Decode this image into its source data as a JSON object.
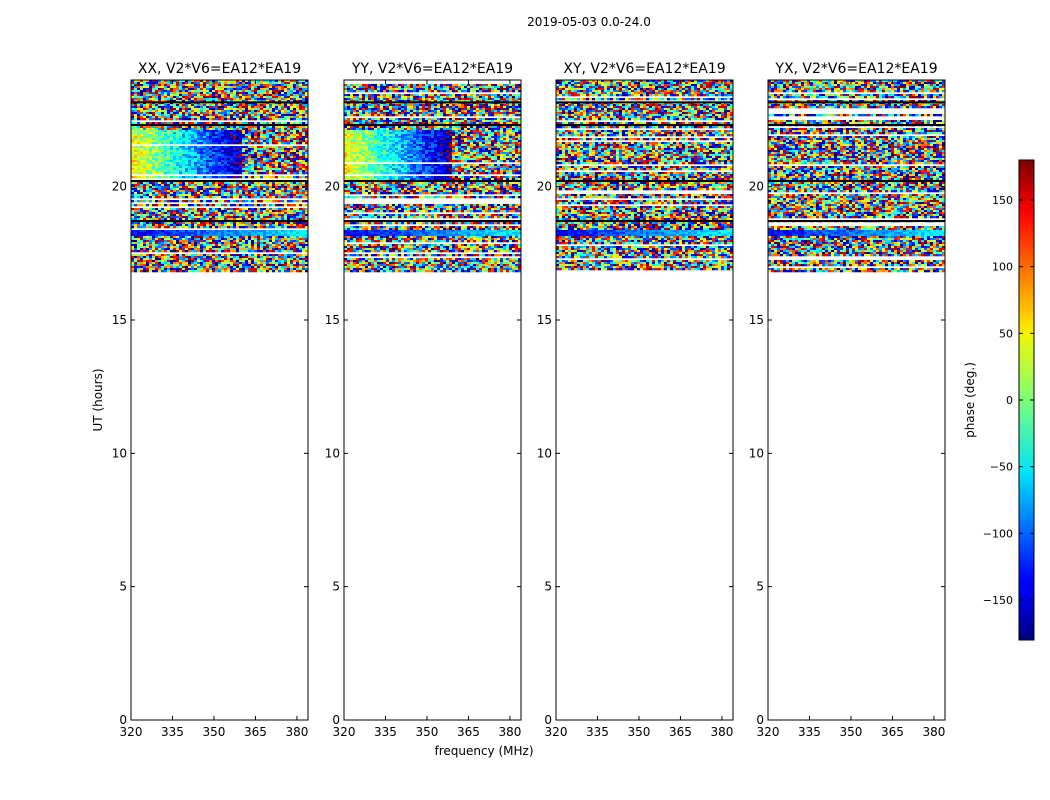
{
  "figure": {
    "suptitle": "2019-05-03 0.0-24.0",
    "ylabel": "UT (hours)",
    "xlabel": "frequency (MHz)"
  },
  "chart_data": [
    {
      "type": "heatmap",
      "title": "XX, V2*V6=EA12*EA19",
      "xlabel": "frequency (MHz)",
      "ylabel": "UT (hours)",
      "xlim": [
        320,
        384
      ],
      "ylim": [
        0,
        24
      ],
      "xticks": [
        320,
        335,
        350,
        365,
        380
      ],
      "yticks": [
        0,
        5,
        10,
        15,
        20
      ],
      "data_extent_hours": [
        16.8,
        24
      ],
      "features": {
        "gradient_block_hours": [
          20.2,
          22.2
        ],
        "gradient_freq_mhz": [
          320,
          360
        ],
        "stripe_hours": 18.3
      },
      "colorbar": {
        "label": "phase (deg.)",
        "range": [
          -180,
          180
        ]
      }
    },
    {
      "type": "heatmap",
      "title": "YY, V2*V6=EA12*EA19",
      "xlabel": "frequency (MHz)",
      "ylabel": "UT (hours)",
      "xlim": [
        320,
        384
      ],
      "ylim": [
        0,
        24
      ],
      "xticks": [
        320,
        335,
        350,
        365,
        380
      ],
      "yticks": [
        0,
        5,
        10,
        15,
        20
      ],
      "data_extent_hours": [
        16.8,
        24
      ],
      "features": {
        "gradient_block_hours": [
          20.2,
          22.2
        ],
        "gradient_freq_mhz": [
          320,
          358
        ],
        "stripe_hours": 18.3
      },
      "colorbar": {
        "label": "phase (deg.)",
        "range": [
          -180,
          180
        ]
      }
    },
    {
      "type": "heatmap",
      "title": "XY, V2*V6=EA12*EA19",
      "xlabel": "frequency (MHz)",
      "ylabel": "UT (hours)",
      "xlim": [
        320,
        384
      ],
      "ylim": [
        0,
        24
      ],
      "xticks": [
        320,
        335,
        350,
        365,
        380
      ],
      "yticks": [
        0,
        5,
        10,
        15,
        20
      ],
      "data_extent_hours": [
        16.8,
        24
      ],
      "features": {
        "gradient_block_hours": null,
        "stripe_hours": 18.3
      },
      "colorbar": {
        "label": "phase (deg.)",
        "range": [
          -180,
          180
        ]
      }
    },
    {
      "type": "heatmap",
      "title": "YX, V2*V6=EA12*EA19",
      "xlabel": "frequency (MHz)",
      "ylabel": "UT (hours)",
      "xlim": [
        320,
        384
      ],
      "ylim": [
        0,
        24
      ],
      "xticks": [
        320,
        335,
        350,
        365,
        380
      ],
      "yticks": [
        0,
        5,
        10,
        15,
        20
      ],
      "data_extent_hours": [
        16.8,
        24
      ],
      "features": {
        "gradient_block_hours": null,
        "stripe_hours": 18.3
      },
      "colorbar": {
        "label": "phase (deg.)",
        "range": [
          -180,
          180
        ]
      }
    }
  ],
  "colorbar": {
    "label": "phase (deg.)",
    "range": [
      -180,
      180
    ],
    "ticks": [
      150,
      100,
      50,
      0,
      -50,
      -100,
      -150
    ],
    "tick_labels": [
      "150",
      "100",
      "50",
      "0",
      "−50",
      "−100",
      "−150"
    ]
  }
}
